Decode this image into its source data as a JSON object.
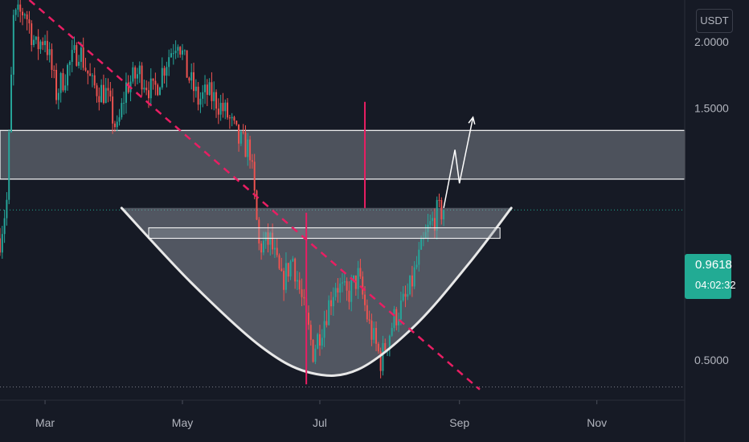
{
  "colors": {
    "background": "#161a25",
    "up": "#26a69a",
    "down": "#ef5350",
    "trendline": "#e91e63",
    "zone_fill": "#9aa0aa",
    "zone_border": "#ffffff",
    "axis_text": "#b2b5be",
    "price_tag": "#22ab94"
  },
  "header": {
    "unit": "USDT"
  },
  "price_tag": {
    "price": "0.9618",
    "countdown": "04:02:32"
  },
  "chart_data": {
    "type": "candlestick",
    "y_scale": "log",
    "y_range": [
      0.42,
      2.4
    ],
    "y_ticks": [
      {
        "value": 2.0,
        "label": "2.0000"
      },
      {
        "value": 1.5,
        "label": "1.5000"
      },
      {
        "value": 0.5,
        "label": "0.5000"
      }
    ],
    "x_range": [
      "2022-02-09",
      "2022-12-10"
    ],
    "x_ticks": [
      {
        "date": "2022-03-01",
        "label": "Mar"
      },
      {
        "date": "2022-05-01",
        "label": "May"
      },
      {
        "date": "2022-07-01",
        "label": "Jul"
      },
      {
        "date": "2022-09-01",
        "label": "Sep"
      },
      {
        "date": "2022-11-01",
        "label": "Nov"
      }
    ],
    "last_price": 0.9618,
    "low_line": 0.445,
    "anchors": [
      [
        "2022-02-09",
        0.85
      ],
      [
        "2022-02-12",
        1.0
      ],
      [
        "2022-02-15",
        2.2
      ],
      [
        "2022-02-20",
        2.3
      ],
      [
        "2022-02-25",
        1.95
      ],
      [
        "2022-03-01",
        2.05
      ],
      [
        "2022-03-06",
        1.6
      ],
      [
        "2022-03-11",
        1.78
      ],
      [
        "2022-03-16",
        1.95
      ],
      [
        "2022-03-22",
        1.65
      ],
      [
        "2022-03-28",
        1.6
      ],
      [
        "2022-04-02",
        1.35
      ],
      [
        "2022-04-06",
        1.65
      ],
      [
        "2022-04-12",
        1.75
      ],
      [
        "2022-04-18",
        1.6
      ],
      [
        "2022-04-24",
        1.85
      ],
      [
        "2022-04-29",
        2.05
      ],
      [
        "2022-05-03",
        1.75
      ],
      [
        "2022-05-08",
        1.55
      ],
      [
        "2022-05-12",
        1.6
      ],
      [
        "2022-05-16",
        1.55
      ],
      [
        "2022-05-21",
        1.45
      ],
      [
        "2022-05-26",
        1.3
      ],
      [
        "2022-05-31",
        1.25
      ],
      [
        "2022-06-04",
        0.82
      ],
      [
        "2022-06-09",
        0.84
      ],
      [
        "2022-06-14",
        0.7
      ],
      [
        "2022-06-19",
        0.78
      ],
      [
        "2022-06-24",
        0.62
      ],
      [
        "2022-06-28",
        0.52
      ],
      [
        "2022-07-03",
        0.6
      ],
      [
        "2022-07-08",
        0.7
      ],
      [
        "2022-07-13",
        0.66
      ],
      [
        "2022-07-18",
        0.72
      ],
      [
        "2022-07-23",
        0.58
      ],
      [
        "2022-07-28",
        0.5
      ],
      [
        "2022-08-03",
        0.6
      ],
      [
        "2022-08-09",
        0.66
      ],
      [
        "2022-08-14",
        0.78
      ],
      [
        "2022-08-18",
        0.88
      ],
      [
        "2022-08-22",
        0.95
      ],
      [
        "2022-08-25",
        0.9618
      ]
    ],
    "annotations": {
      "resistance_zone": [
        1.1,
        1.36
      ],
      "cup_handle_zone": [
        0.85,
        0.89
      ],
      "cup_rim": [
        [
          "2022-04-04",
          0.97
        ],
        [
          "2022-05-05",
          0.7
        ],
        [
          "2022-06-05",
          0.53
        ],
        [
          "2022-06-27",
          0.473
        ],
        [
          "2022-07-18",
          0.48
        ],
        [
          "2022-08-12",
          0.58
        ],
        [
          "2022-09-05",
          0.76
        ],
        [
          "2022-09-24",
          0.97
        ]
      ],
      "downtrend_line": [
        [
          "2022-02-22",
          2.4
        ],
        [
          "2022-09-10",
          0.44
        ]
      ],
      "wick_line": {
        "date": "2022-07-21",
        "from": 0.97,
        "to": 1.54
      },
      "projection_path": [
        [
          "2022-08-25",
          0.97
        ],
        [
          "2022-08-30",
          1.25
        ],
        [
          "2022-09-01",
          1.08
        ],
        [
          "2022-09-07",
          1.44
        ]
      ]
    }
  }
}
